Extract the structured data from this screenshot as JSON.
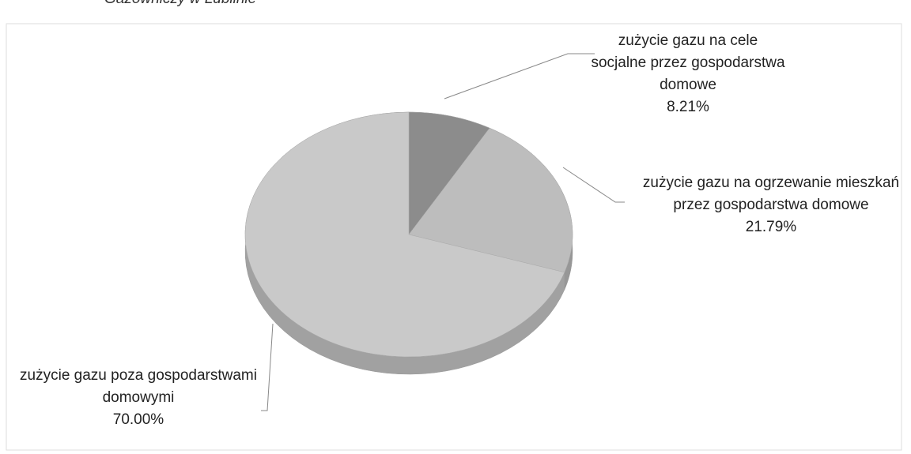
{
  "chart_data": {
    "type": "pie",
    "caption": "Gazowniczy w Lublinie",
    "categories": [
      "zużycie gazu na cele socjalne przez gospodarstwa domowe",
      "zużycie gazu na ogrzewanie mieszkań przez gospodarstwa domowe",
      "zużycie gazu poza gospodarstwami domowymi"
    ],
    "values": [
      8.21,
      21.79,
      70.0
    ],
    "value_labels": [
      "8.21%",
      "21.79%",
      "70.00%"
    ],
    "colors": [
      "#8c8c8c",
      "#bdbdbd",
      "#c9c9c9"
    ]
  }
}
